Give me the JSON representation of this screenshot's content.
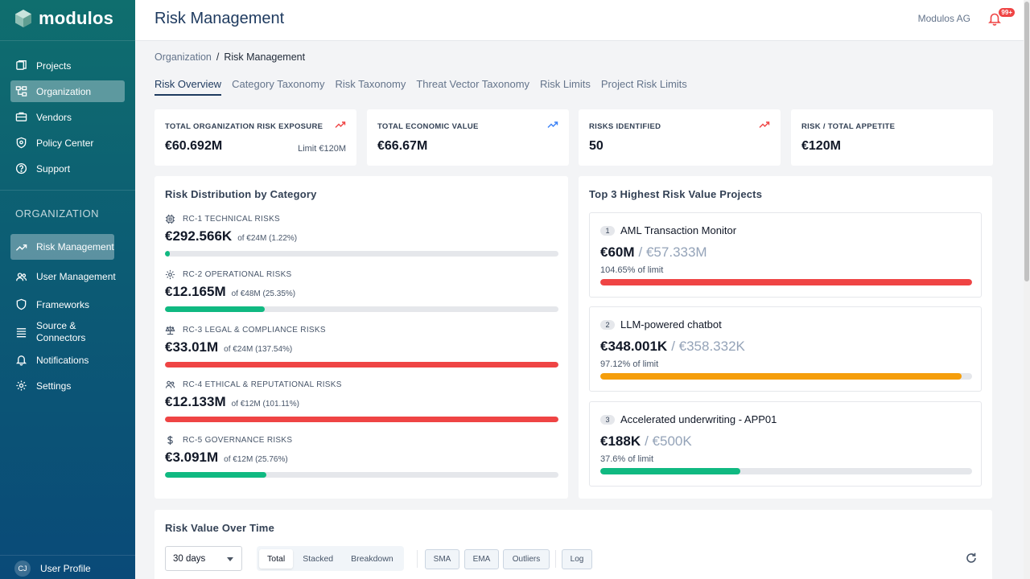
{
  "brand": {
    "name": "modulos"
  },
  "sidebar": {
    "top_items": [
      {
        "label": "Projects",
        "icon": "projects-icon"
      },
      {
        "label": "Organization",
        "icon": "organization-icon"
      },
      {
        "label": "Vendors",
        "icon": "vendors-icon"
      },
      {
        "label": "Policy Center",
        "icon": "shield-icon"
      },
      {
        "label": "Support",
        "icon": "help-icon"
      }
    ],
    "section_heading": "ORGANIZATION",
    "org_items": [
      {
        "label": "Risk Management",
        "icon": "trend-icon"
      },
      {
        "label": "User Management",
        "icon": "users-icon"
      },
      {
        "label": "Frameworks",
        "icon": "shield-icon"
      },
      {
        "label": "Source & Connectors",
        "icon": "database-icon"
      },
      {
        "label": "Notifications",
        "icon": "bell-icon"
      },
      {
        "label": "Settings",
        "icon": "gear-icon"
      }
    ],
    "user": {
      "initials": "CJ",
      "label": "User Profile"
    },
    "collapse_label": "«"
  },
  "header": {
    "title": "Risk Management",
    "org_name": "Modulos AG",
    "notification_badge": "99+"
  },
  "breadcrumb": {
    "parent": "Organization",
    "separator": "/",
    "current": "Risk Management"
  },
  "tabs": [
    "Risk Overview",
    "Category Taxonomy",
    "Risk Taxonomy",
    "Threat Vector Taxonomy",
    "Risk Limits",
    "Project Risk Limits"
  ],
  "kpis": [
    {
      "label": "TOTAL ORGANIZATION RISK EXPOSURE",
      "value": "€60.692M",
      "sub": "Limit €120M",
      "trend_color": "#ef4444"
    },
    {
      "label": "TOTAL ECONOMIC VALUE",
      "value": "€66.67M",
      "sub": "",
      "trend_color": "#3b82f6"
    },
    {
      "label": "RISKS IDENTIFIED",
      "value": "50",
      "sub": "",
      "trend_color": "#ef4444"
    },
    {
      "label": "RISK / TOTAL APPETITE",
      "value": "€120M",
      "sub": ""
    }
  ],
  "distribution": {
    "title": "Risk Distribution by Category",
    "items": [
      {
        "label": "RC-1 TECHNICAL RISKS",
        "icon": "chip-icon",
        "value": "€292.566K",
        "of": "of €24M (1.22%)",
        "fill": 0.0122,
        "color": "#10b981"
      },
      {
        "label": "RC-2 OPERATIONAL RISKS",
        "icon": "gear-icon",
        "value": "€12.165M",
        "of": "of €48M (25.35%)",
        "fill": 0.2535,
        "color": "#10b981"
      },
      {
        "label": "RC-3 LEGAL & COMPLIANCE RISKS",
        "icon": "scale-icon",
        "value": "€33.01M",
        "of": "of €24M (137.54%)",
        "fill": 1.0,
        "color": "#ef4444"
      },
      {
        "label": "RC-4 ETHICAL & REPUTATIONAL RISKS",
        "icon": "people-icon",
        "value": "€12.133M",
        "of": "of €12M (101.11%)",
        "fill": 1.0,
        "color": "#ef4444"
      },
      {
        "label": "RC-5 GOVERNANCE RISKS",
        "icon": "dollar-icon",
        "value": "€3.091M",
        "of": "of €12M (25.76%)",
        "fill": 0.2576,
        "color": "#10b981"
      }
    ]
  },
  "top_projects": {
    "title": "Top 3 Highest Risk Value Projects",
    "items": [
      {
        "rank": "1",
        "name": "AML Transaction Monitor",
        "value": "€60M",
        "limit": "/ €57.333M",
        "pct": "104.65% of limit",
        "fill": 1.0,
        "color": "#ef4444"
      },
      {
        "rank": "2",
        "name": "LLM-powered chatbot",
        "value": "€348.001K",
        "limit": "/ €358.332K",
        "pct": "97.12% of limit",
        "fill": 0.9712,
        "color": "#f59e0b"
      },
      {
        "rank": "3",
        "name": "Accelerated underwriting - APP01",
        "value": "€188K",
        "limit": "/ €500K",
        "pct": "37.6% of limit",
        "fill": 0.376,
        "color": "#10b981"
      }
    ]
  },
  "timeline": {
    "title": "Risk Value Over Time",
    "range": "30 days",
    "modes": [
      "Total",
      "Stacked",
      "Breakdown"
    ],
    "active_mode": "Total",
    "toggles": [
      "SMA",
      "EMA",
      "Outliers"
    ],
    "scale_toggle": "Log"
  }
}
